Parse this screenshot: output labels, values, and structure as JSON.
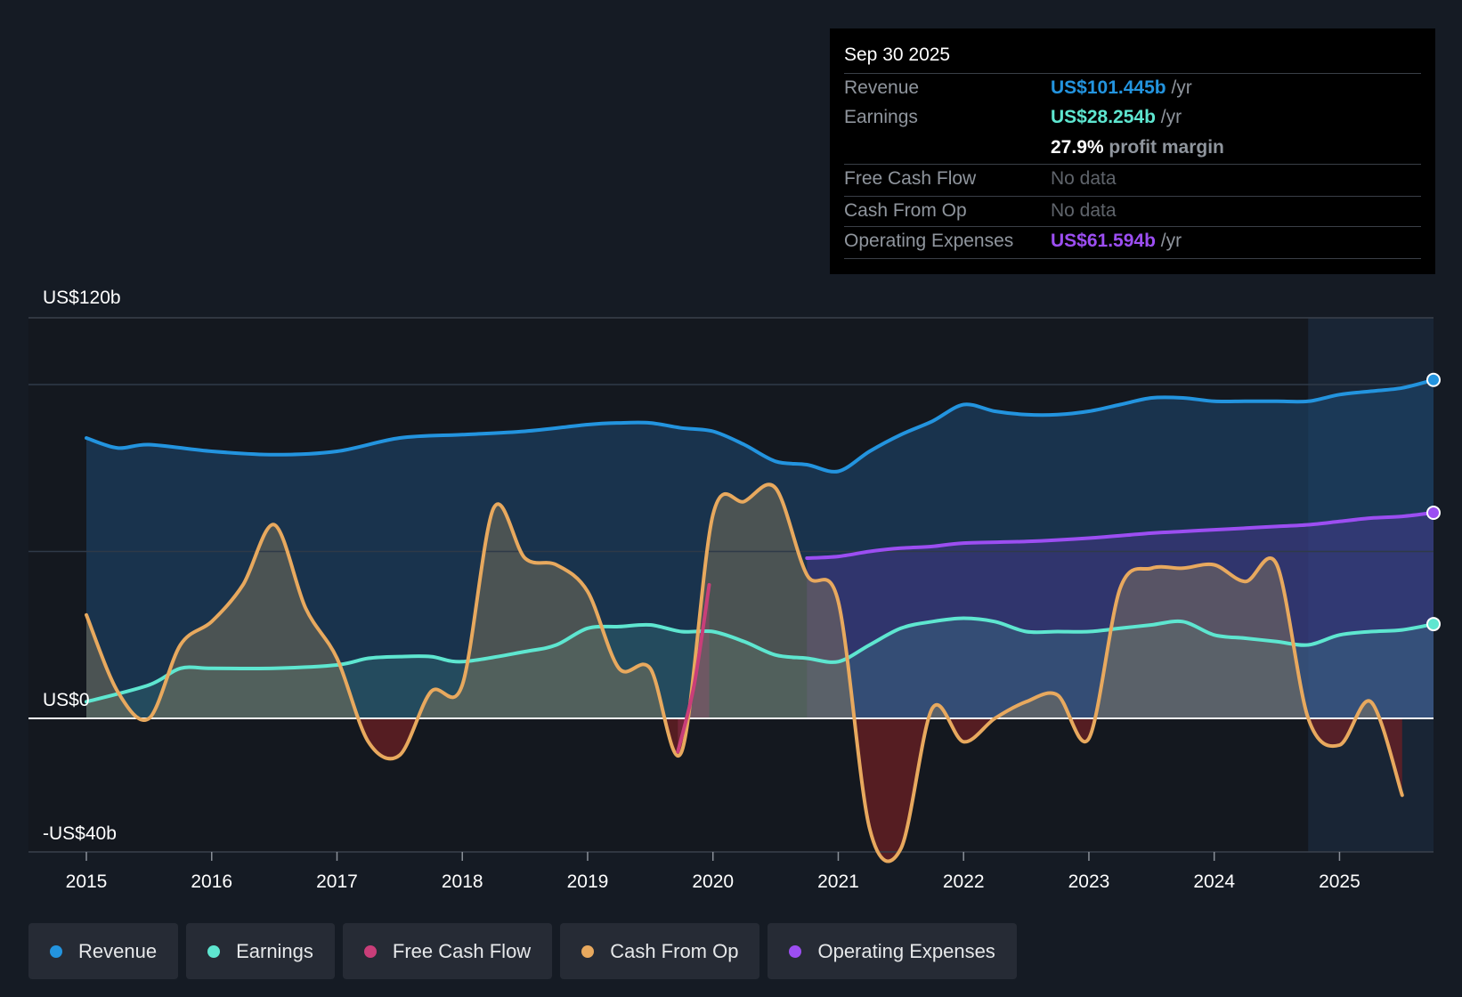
{
  "tooltip": {
    "date": "Sep 30 2025",
    "revenue_label": "Revenue",
    "revenue_value": "US$101.445b",
    "earnings_label": "Earnings",
    "earnings_value": "US$28.254b",
    "margin_value": "27.9%",
    "margin_label": "profit margin",
    "fcf_label": "Free Cash Flow",
    "fcf_value": "No data",
    "cfo_label": "Cash From Op",
    "cfo_value": "No data",
    "opex_label": "Operating Expenses",
    "opex_value": "US$61.594b",
    "per_year": "/yr"
  },
  "legend": [
    {
      "label": "Revenue",
      "color": "#2394df"
    },
    {
      "label": "Earnings",
      "color": "#5ee6d0"
    },
    {
      "label": "Free Cash Flow",
      "color": "#c93e79"
    },
    {
      "label": "Cash From Op",
      "color": "#e8a95e"
    },
    {
      "label": "Operating Expenses",
      "color": "#9c4ef2"
    }
  ],
  "chart_data": {
    "type": "area",
    "ylim": [
      -40,
      120
    ],
    "y_tick_labels": [
      {
        "value": 120,
        "label": "US$120b"
      },
      {
        "value": 0,
        "label": "US$0"
      },
      {
        "value": -40,
        "label": "-US$40b"
      }
    ],
    "gridlines": [
      100,
      50
    ],
    "xlim": [
      2015,
      2025.75
    ],
    "x_ticks": [
      {
        "value": 2015,
        "label": "2015"
      },
      {
        "value": 2016,
        "label": "2016"
      },
      {
        "value": 2017,
        "label": "2017"
      },
      {
        "value": 2018,
        "label": "2018"
      },
      {
        "value": 2019,
        "label": "2019"
      },
      {
        "value": 2020,
        "label": "2020"
      },
      {
        "value": 2021,
        "label": "2021"
      },
      {
        "value": 2022,
        "label": "2022"
      },
      {
        "value": 2023,
        "label": "2023"
      },
      {
        "value": 2024,
        "label": "2024"
      },
      {
        "value": 2025,
        "label": "2025"
      }
    ],
    "forecast_start": 2024.75,
    "series": [
      {
        "name": "Revenue",
        "color": "#2394df",
        "endpoint": true,
        "x": [
          2015,
          2015.25,
          2015.5,
          2016,
          2016.5,
          2017,
          2017.5,
          2018,
          2018.5,
          2019,
          2019.25,
          2019.5,
          2019.75,
          2020,
          2020.25,
          2020.5,
          2020.75,
          2021,
          2021.25,
          2021.5,
          2021.75,
          2022,
          2022.25,
          2022.5,
          2022.75,
          2023,
          2023.25,
          2023.5,
          2023.75,
          2024,
          2024.25,
          2024.5,
          2024.75,
          2025,
          2025.25,
          2025.5,
          2025.75
        ],
        "values": [
          84,
          81,
          82,
          80,
          79,
          80,
          84,
          85,
          86,
          88,
          88.5,
          88.5,
          87,
          86,
          82,
          77,
          76,
          74,
          80,
          85,
          89,
          94,
          92,
          91,
          91,
          92,
          94,
          96,
          96,
          95,
          95,
          95,
          95,
          97,
          98,
          99,
          101.4
        ]
      },
      {
        "name": "Earnings",
        "color": "#5ee6d0",
        "endpoint": true,
        "x": [
          2015,
          2015.5,
          2015.75,
          2016,
          2016.5,
          2017,
          2017.25,
          2017.5,
          2017.75,
          2018,
          2018.5,
          2018.75,
          2019,
          2019.25,
          2019.5,
          2019.75,
          2020,
          2020.25,
          2020.5,
          2020.75,
          2021,
          2021.25,
          2021.5,
          2021.75,
          2022,
          2022.25,
          2022.5,
          2022.75,
          2023,
          2023.25,
          2023.5,
          2023.75,
          2024,
          2024.25,
          2024.5,
          2024.75,
          2025,
          2025.25,
          2025.5,
          2025.75
        ],
        "values": [
          5,
          10,
          15,
          15,
          15,
          16,
          18,
          18.5,
          18.5,
          17,
          20,
          22,
          27,
          27.5,
          28,
          26,
          26,
          23,
          19,
          18,
          17,
          22,
          27,
          29,
          30,
          29,
          26,
          26,
          26,
          27,
          28,
          29,
          25,
          24,
          23,
          22,
          25,
          26,
          26.5,
          28.25
        ]
      },
      {
        "name": "Free Cash Flow",
        "color": "#c93e79",
        "x": [
          2019.72,
          2019.85,
          2019.97
        ],
        "values": [
          -10,
          10,
          40
        ]
      },
      {
        "name": "Cash From Op",
        "color": "#e8a95e",
        "x": [
          2015,
          2015.25,
          2015.5,
          2015.75,
          2016,
          2016.25,
          2016.5,
          2016.75,
          2017,
          2017.25,
          2017.5,
          2017.75,
          2018,
          2018.25,
          2018.5,
          2018.75,
          2019,
          2019.25,
          2019.5,
          2019.75,
          2020,
          2020.25,
          2020.5,
          2020.75,
          2021,
          2021.25,
          2021.5,
          2021.75,
          2022,
          2022.25,
          2022.5,
          2022.75,
          2023,
          2023.25,
          2023.5,
          2023.75,
          2024,
          2024.25,
          2024.5,
          2024.75,
          2025,
          2025.25,
          2025.5
        ],
        "values": [
          31,
          8,
          0,
          22,
          29,
          40,
          58,
          33,
          18,
          -7,
          -11,
          8,
          10,
          63,
          48,
          46,
          38,
          15,
          15,
          -10,
          61,
          65,
          69,
          43,
          35,
          -33,
          -39,
          3,
          -7,
          0,
          5,
          7,
          -6,
          39,
          45,
          45,
          46,
          41,
          46,
          0,
          -8,
          5,
          -23
        ]
      },
      {
        "name": "Operating Expenses",
        "color": "#9c4ef2",
        "endpoint": true,
        "x": [
          2020.75,
          2021,
          2021.25,
          2021.5,
          2021.75,
          2022,
          2022.5,
          2023,
          2023.5,
          2023.75,
          2024,
          2024.25,
          2024.5,
          2024.75,
          2025,
          2025.25,
          2025.5,
          2025.75
        ],
        "values": [
          48,
          48.5,
          50,
          51,
          51.5,
          52.5,
          53,
          54,
          55.5,
          56,
          56.5,
          57,
          57.5,
          58,
          59,
          60,
          60.5,
          61.6
        ]
      }
    ]
  }
}
